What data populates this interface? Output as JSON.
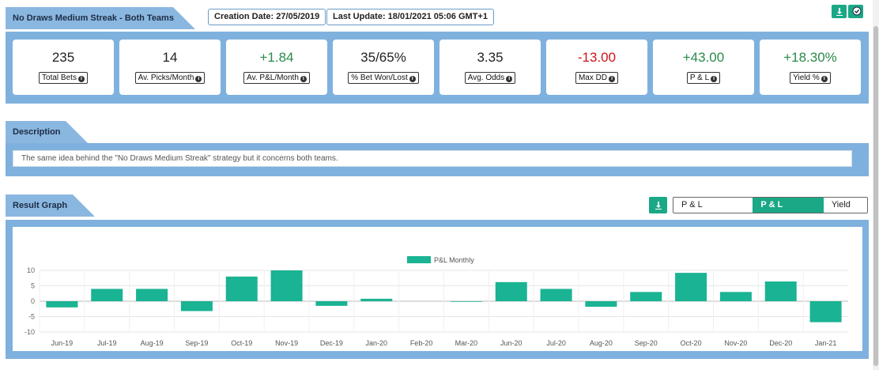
{
  "strategy": {
    "title": "No Draws Medium Streak - Both Teams",
    "creation_date": "Creation Date: 27/05/2019",
    "last_update": "Last Update: 18/01/2021 05:06 GMT+1"
  },
  "stats": [
    {
      "value": "235",
      "label": "Total Bets",
      "tone": "neutral"
    },
    {
      "value": "14",
      "label": "Av. Picks/Month",
      "tone": "neutral"
    },
    {
      "value": "+1.84",
      "label": "Av. P&L/Month",
      "tone": "pos"
    },
    {
      "value": "35/65%",
      "label": "% Bet Won/Lost",
      "tone": "neutral"
    },
    {
      "value": "3.35",
      "label": "Avg. Odds",
      "tone": "neutral"
    },
    {
      "value": "-13.00",
      "label": "Max DD",
      "tone": "neg"
    },
    {
      "value": "+43.00",
      "label": "P & L",
      "tone": "pos"
    },
    {
      "value": "+18.30%",
      "label": "Yield %",
      "tone": "pos"
    }
  ],
  "description": {
    "header": "Description",
    "text": "The same idea behind the \"No Draws Medium Streak\" strategy but it concerns both teams."
  },
  "result_graph": {
    "header": "Result Graph",
    "tabs": [
      "P & L Cumulative",
      "P & L Monthly",
      "Yield %"
    ],
    "active_tab": 1
  },
  "icons": {
    "download": "download-icon",
    "follow": "check-badge-icon"
  },
  "colors": {
    "accent": "#1aa886",
    "panel": "#7fb1de",
    "positive": "#2a8a4a",
    "negative": "#d0141a",
    "bar": "#1ab394"
  },
  "chart_data": {
    "type": "bar",
    "categories": [
      "Jun-19",
      "Jul-19",
      "Aug-19",
      "Sep-19",
      "Oct-19",
      "Nov-19",
      "Dec-19",
      "Jan-20",
      "Feb-20",
      "Mar-20",
      "Jun-20",
      "Jul-20",
      "Aug-20",
      "Sep-20",
      "Oct-20",
      "Nov-20",
      "Dec-20",
      "Jan-21"
    ],
    "series": [
      {
        "name": "P&L Monthly",
        "values": [
          -2,
          4,
          4,
          -3.2,
          8,
          10,
          -1.5,
          0.8,
          0,
          -0.2,
          6.2,
          4,
          -1.8,
          3,
          9.2,
          3,
          6.4,
          -6.8
        ]
      }
    ],
    "yticks": [
      10,
      5,
      0,
      -5,
      -10
    ],
    "ylim": [
      -10,
      10
    ],
    "legend": "top-center",
    "grid": true
  }
}
